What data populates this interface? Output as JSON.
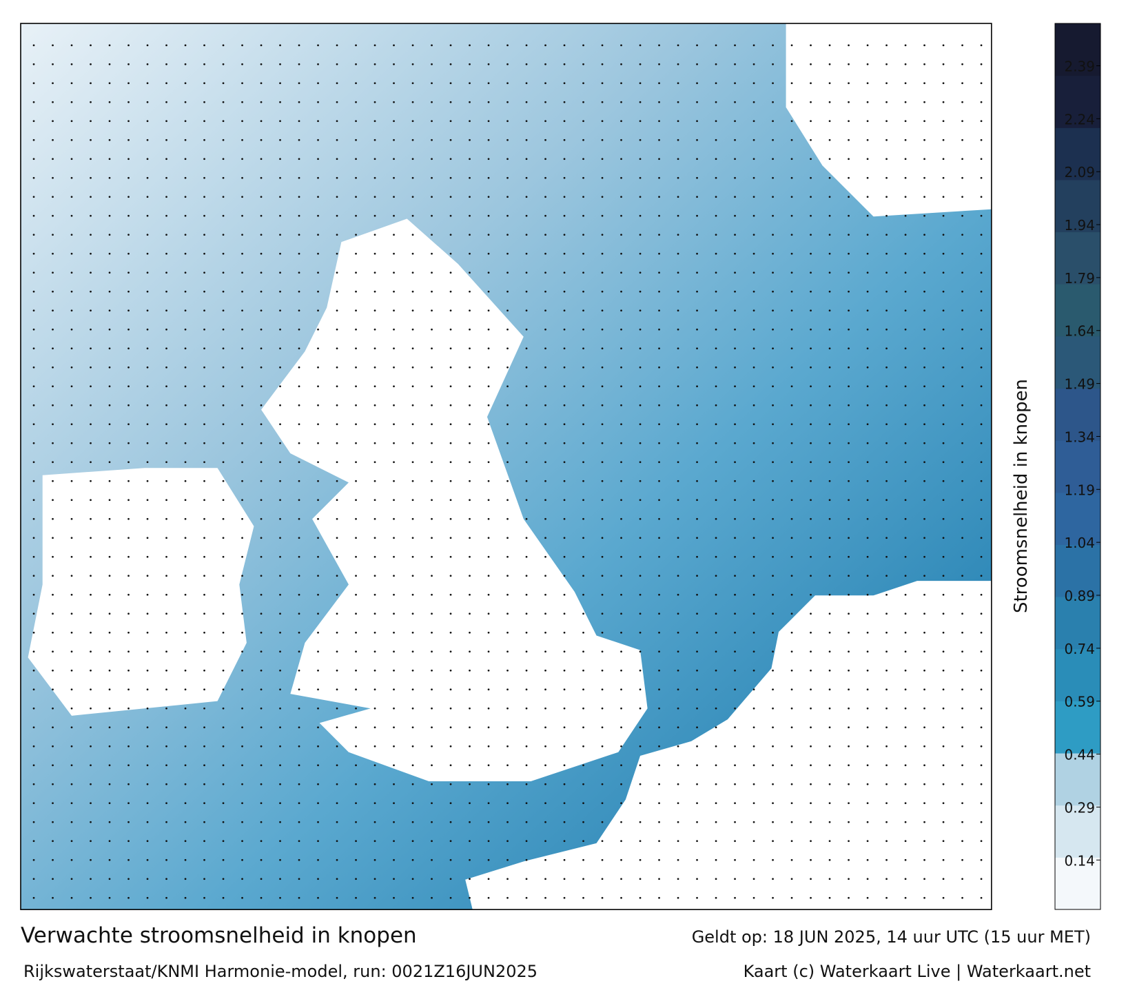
{
  "header": {
    "title": "Verwachte stroomsnelheid in knopen",
    "subtitle": "Rijkswaterstaat/KNMI Harmonie-model, run: 0021Z16JUN2025",
    "valid": "Geldt op: 18 JUN 2025, 14 uur UTC (15 uur MET)",
    "credit": "Kaart (c) Waterkaart Live | Waterkaart.net"
  },
  "colorbar": {
    "label": "Stroomsnelheid in knopen",
    "range": [
      0,
      2.51
    ],
    "ticks": [
      0.14,
      0.29,
      0.44,
      0.59,
      0.74,
      0.89,
      1.04,
      1.19,
      1.34,
      1.49,
      1.64,
      1.79,
      1.94,
      2.09,
      2.24,
      2.39
    ],
    "colors": [
      "#f4f8fb",
      "#d6e7f0",
      "#b0d2e3",
      "#2e9cc4",
      "#2a8db8",
      "#2a80ae",
      "#2b72a6",
      "#2e66a0",
      "#2f5d96",
      "#2d568a",
      "#2b5878",
      "#2a5a6e",
      "#2a4f6a",
      "#23405e",
      "#1c3050",
      "#181f3a",
      "#161a30"
    ]
  }
}
